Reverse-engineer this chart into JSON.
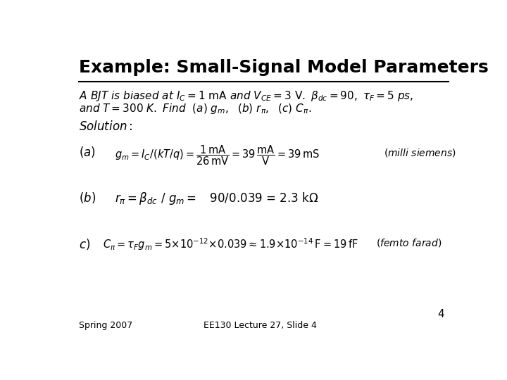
{
  "title": "Example: Small-Signal Model Parameters",
  "bg_color": "#ffffff",
  "text_color": "#000000",
  "footer_left": "Spring 2007",
  "footer_center": "EE130 Lecture 27, Slide 4",
  "footer_page": "4"
}
